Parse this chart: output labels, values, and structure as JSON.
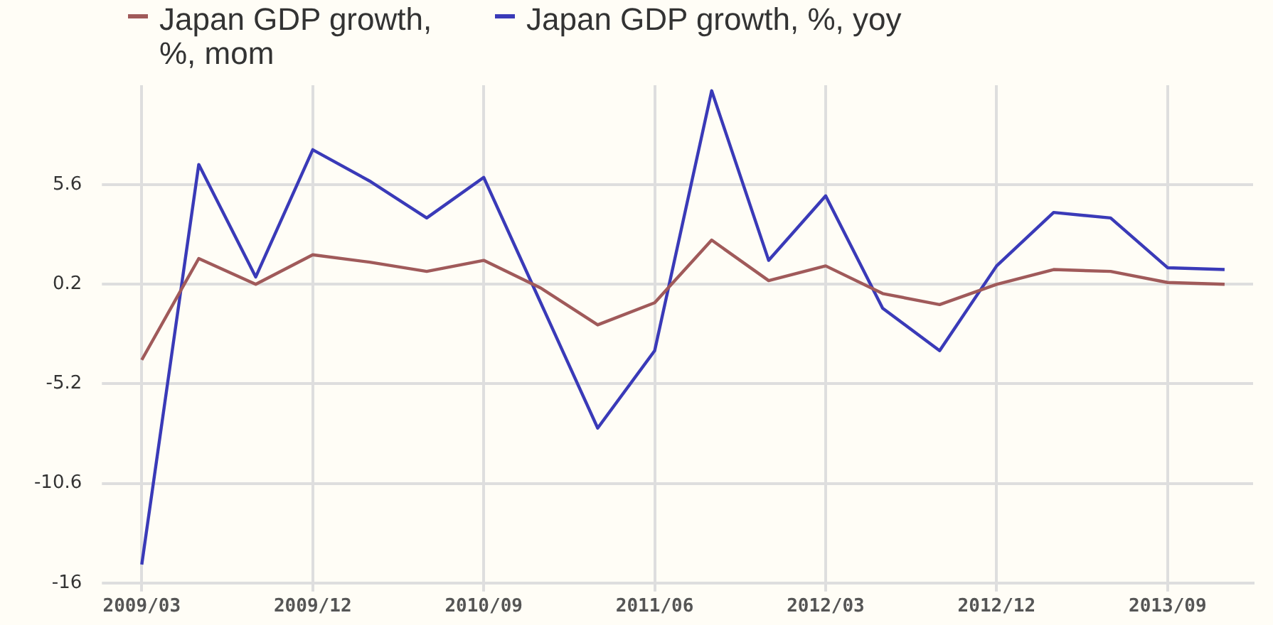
{
  "chart_data": {
    "type": "line",
    "categories": [
      "2009/03",
      null,
      null,
      "2009/12",
      null,
      null,
      "2010/09",
      null,
      null,
      "2011/06",
      null,
      null,
      "2012/03",
      null,
      null,
      "2012/12",
      null,
      null,
      "2013/09",
      null
    ],
    "series": [
      {
        "name": "Japan GDP growth, %, mom",
        "color": "#a05a5a",
        "values": [
          -3.9,
          1.6,
          0.2,
          1.8,
          1.4,
          0.9,
          1.5,
          0.0,
          -2.0,
          -0.8,
          2.6,
          0.4,
          1.2,
          -0.3,
          -0.9,
          0.2,
          1.0,
          0.9,
          0.3,
          0.2
        ]
      },
      {
        "name": "Japan GDP growth, %, yoy",
        "color": "#3a3ab8",
        "values": [
          -15.0,
          6.7,
          0.6,
          7.5,
          5.8,
          3.8,
          6.0,
          -0.8,
          -7.6,
          -3.4,
          10.7,
          1.5,
          5.0,
          -1.1,
          -3.4,
          1.2,
          4.1,
          3.8,
          1.1,
          1.0
        ]
      }
    ],
    "ylim": [
      -16,
      11
    ],
    "yticks": [
      -16,
      -10.6,
      -5.2,
      0.2,
      5.6
    ],
    "grid": true,
    "legend": "top left",
    "marker": "none",
    "line_style": "solid"
  }
}
